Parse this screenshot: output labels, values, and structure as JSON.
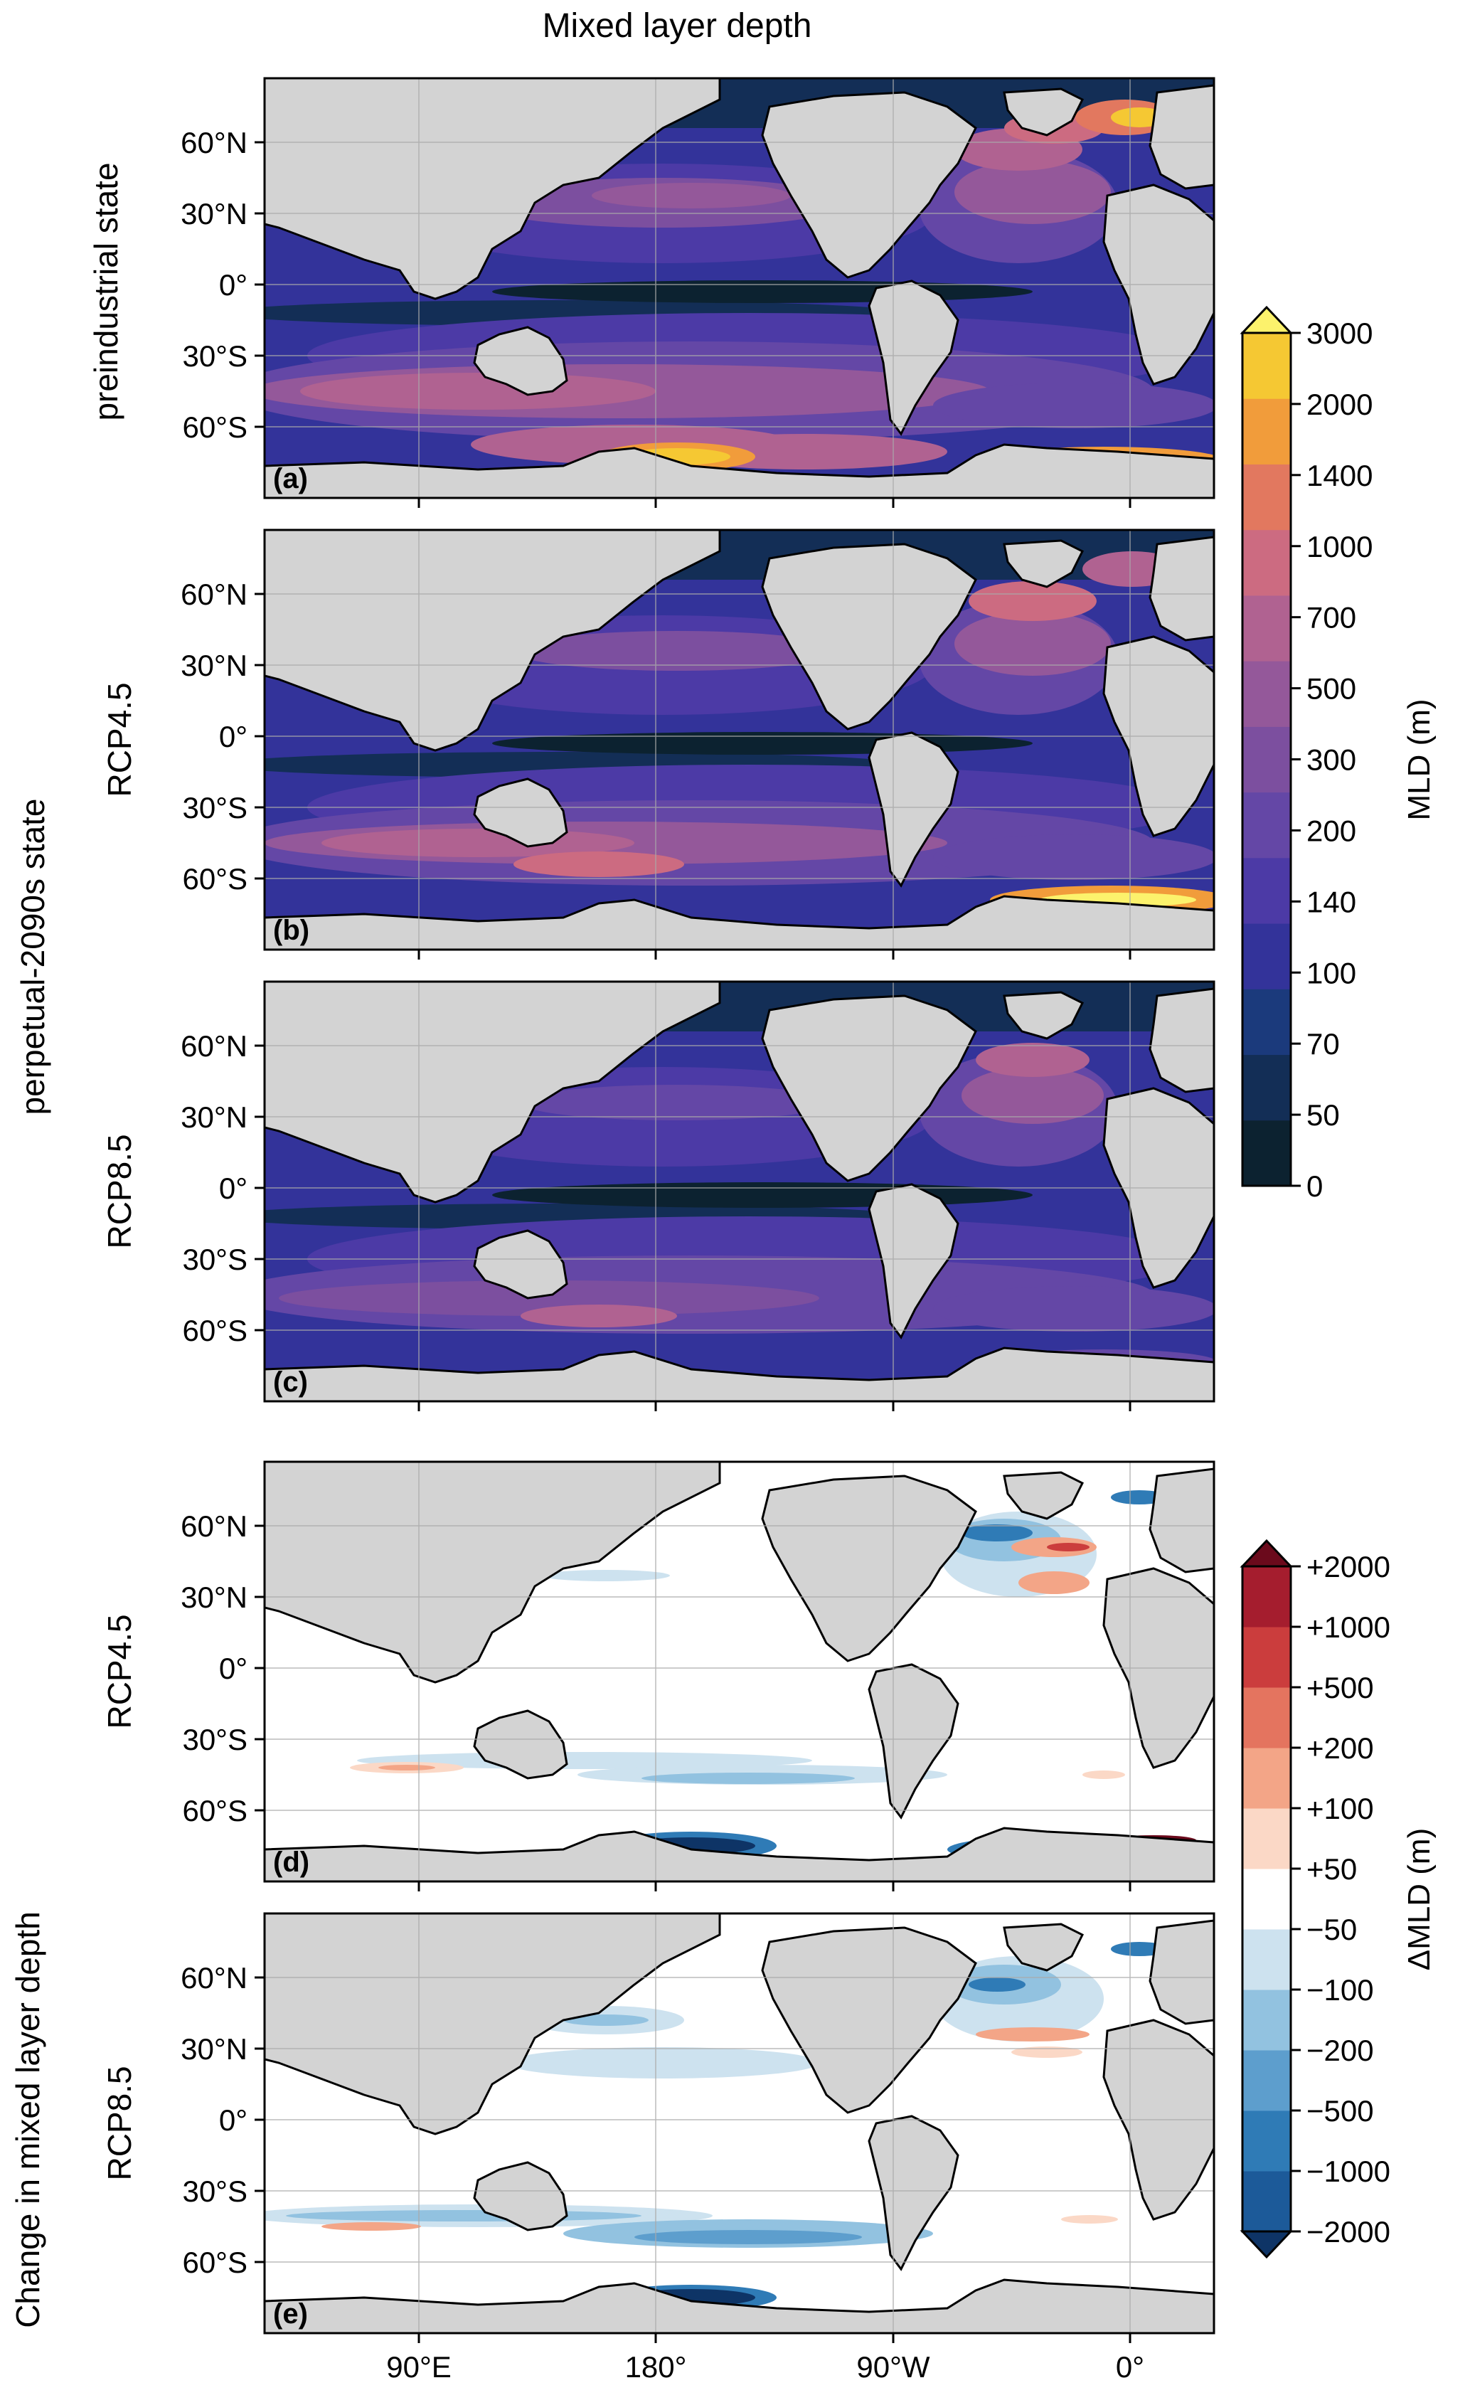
{
  "figure": {
    "title": "Mixed layer depth",
    "group_labels": {
      "preindustrial": "preindustrial state",
      "perpetual": "perpetual-2090s state",
      "change": "Change in mixed layer depth"
    }
  },
  "colors": {
    "land": "#d3d3d3",
    "coast": "#000000",
    "grid": "#a9a9a9"
  },
  "chart_data": [
    {
      "type": "heatmap",
      "panel": "(a)",
      "row_label": "",
      "group": "preindustrial state",
      "variable": "Mixed layer depth",
      "lat_ticks": [
        "60°N",
        "30°N",
        "0°",
        "30°S",
        "60°S"
      ],
      "lon_ticks": [],
      "features": [
        {
          "lon": -30,
          "lat": 70,
          "value": 2000
        },
        {
          "lon": -40,
          "lat": 55,
          "value": 700
        },
        {
          "lon": 160,
          "lat": 38,
          "value": 300
        },
        {
          "lon": 175,
          "lat": -70,
          "value": 3000
        },
        {
          "lon": -30,
          "lat": -67,
          "value": 3000
        },
        {
          "lon": 100,
          "lat": -48,
          "value": 500
        },
        {
          "lon": -100,
          "lat": -55,
          "value": 500
        },
        {
          "lon": -130,
          "lat": 0,
          "value": 50
        }
      ]
    },
    {
      "type": "heatmap",
      "panel": "(b)",
      "row_label": "RCP4.5",
      "group": "perpetual-2090s state",
      "variable": "Mixed layer depth",
      "lat_ticks": [
        "60°N",
        "30°N",
        "0°",
        "30°S",
        "60°S"
      ],
      "lon_ticks": [],
      "features": [
        {
          "lon": -40,
          "lat": 55,
          "value": 500
        },
        {
          "lon": -20,
          "lat": 70,
          "value": 700
        },
        {
          "lon": 160,
          "lat": 38,
          "value": 300
        },
        {
          "lon": -30,
          "lat": -67,
          "value": 3000
        },
        {
          "lon": 100,
          "lat": -48,
          "value": 500
        },
        {
          "lon": -100,
          "lat": -55,
          "value": 300
        },
        {
          "lon": -130,
          "lat": 0,
          "value": 50
        }
      ]
    },
    {
      "type": "heatmap",
      "panel": "(c)",
      "row_label": "RCP8.5",
      "group": "perpetual-2090s state",
      "variable": "Mixed layer depth",
      "lat_ticks": [
        "60°N",
        "30°N",
        "0°",
        "30°S",
        "60°S"
      ],
      "lon_ticks": [],
      "features": [
        {
          "lon": -40,
          "lat": 52,
          "value": 500
        },
        {
          "lon": 160,
          "lat": 38,
          "value": 200
        },
        {
          "lon": 100,
          "lat": -48,
          "value": 300
        },
        {
          "lon": 150,
          "lat": -60,
          "value": 500
        },
        {
          "lon": -100,
          "lat": -55,
          "value": 200
        },
        {
          "lon": -130,
          "lat": 0,
          "value": 50
        }
      ]
    },
    {
      "type": "heatmap",
      "panel": "(d)",
      "row_label": "RCP4.5",
      "group": "Change in mixed layer depth",
      "variable": "Change in mixed layer depth",
      "lat_ticks": [
        "60°N",
        "30°N",
        "0°",
        "30°S",
        "60°S"
      ],
      "lon_ticks": [],
      "features": [
        {
          "lon": 175,
          "lat": -70,
          "value": -2000
        },
        {
          "lon": -40,
          "lat": -70,
          "value": -2000
        },
        {
          "lon": -5,
          "lat": -66,
          "value": 2000
        },
        {
          "lon": -40,
          "lat": 58,
          "value": -500
        },
        {
          "lon": -25,
          "lat": 50,
          "value": 500
        },
        {
          "lon": -25,
          "lat": 35,
          "value": 200
        },
        {
          "lon": -15,
          "lat": 72,
          "value": -500
        },
        {
          "lon": 100,
          "lat": -45,
          "value": 100
        },
        {
          "lon": -140,
          "lat": -52,
          "value": -100
        },
        {
          "lon": 160,
          "lat": 35,
          "value": -100
        }
      ]
    },
    {
      "type": "heatmap",
      "panel": "(e)",
      "row_label": "RCP8.5",
      "group": "Change in mixed layer depth",
      "variable": "Change in mixed layer depth",
      "lat_ticks": [
        "60°N",
        "30°N",
        "0°",
        "30°S",
        "60°S"
      ],
      "lon_ticks": [
        "90°E",
        "180°",
        "90°W",
        "0°"
      ],
      "features": [
        {
          "lon": 175,
          "lat": -70,
          "value": -2000
        },
        {
          "lon": -30,
          "lat": -69,
          "value": -2000
        },
        {
          "lon": -40,
          "lat": 58,
          "value": -500
        },
        {
          "lon": -30,
          "lat": 40,
          "value": 200
        },
        {
          "lon": -15,
          "lat": 72,
          "value": -500
        },
        {
          "lon": 160,
          "lat": 38,
          "value": -200
        },
        {
          "lon": 100,
          "lat": -48,
          "value": 100
        },
        {
          "lon": 100,
          "lat": -40,
          "value": -100
        },
        {
          "lon": -140,
          "lat": -55,
          "value": -200
        }
      ]
    },
    {
      "type": "colorbar",
      "label": "MLD (m)",
      "extend": "max",
      "ticks": [
        "0",
        "50",
        "70",
        "100",
        "140",
        "200",
        "300",
        "500",
        "700",
        "1000",
        "1400",
        "2000",
        "3000"
      ],
      "colors": [
        "#0c2230",
        "#132e56",
        "#1b3a7c",
        "#33339a",
        "#4c3aa6",
        "#6447a6",
        "#7c4f9f",
        "#94589a",
        "#b06291",
        "#cc6b81",
        "#e2785f",
        "#f19c3b",
        "#f5c833"
      ],
      "extend_color": "#fcf26c"
    },
    {
      "type": "colorbar",
      "label": "ΔMLD (m)",
      "extend": "both",
      "ticks": [
        "−2000",
        "−1000",
        "−500",
        "−200",
        "−100",
        "−50",
        "+50",
        "+100",
        "+200",
        "+500",
        "+1000",
        "+2000"
      ],
      "colors": [
        "#1c5a99",
        "#2f7bb6",
        "#5d9ecd",
        "#92c2e0",
        "#cde2ef",
        "#ffffff",
        "#fbd8c6",
        "#f3a587",
        "#e4745f",
        "#cb3d3d",
        "#a51d2e"
      ],
      "extend_low": "#0e3466",
      "extend_high": "#6b0a1c"
    }
  ]
}
